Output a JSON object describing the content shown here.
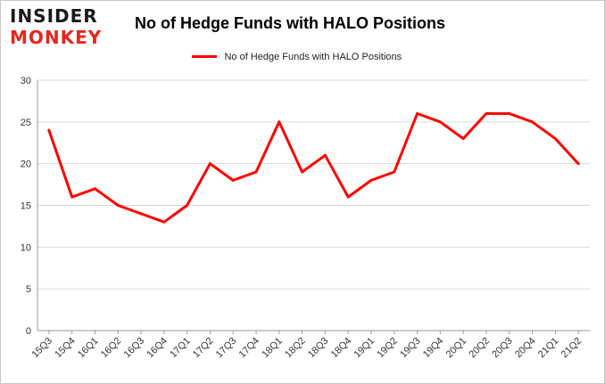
{
  "logo": {
    "line1": "INSIDER",
    "line2": "MONKEY"
  },
  "chart_data": {
    "type": "line",
    "title": "No of Hedge Funds with HALO Positions",
    "xlabel": "",
    "ylabel": "",
    "categories": [
      "15Q3",
      "15Q4",
      "16Q1",
      "16Q2",
      "16Q3",
      "16Q4",
      "17Q1",
      "17Q2",
      "17Q3",
      "17Q4",
      "18Q1",
      "18Q2",
      "18Q3",
      "18Q4",
      "19Q1",
      "19Q2",
      "19Q3",
      "19Q4",
      "20Q1",
      "20Q2",
      "20Q3",
      "20Q4",
      "21Q1",
      "21Q2"
    ],
    "series": [
      {
        "name": "No of Hedge Funds with HALO Positions",
        "color": "#ff0000",
        "values": [
          24,
          16,
          17,
          15,
          14,
          13,
          15,
          20,
          18,
          19,
          25,
          19,
          21,
          16,
          18,
          19,
          26,
          25,
          23,
          26,
          26,
          25,
          23,
          20
        ]
      }
    ],
    "ylim": [
      0,
      30
    ],
    "yticks": [
      0,
      5,
      10,
      15,
      20,
      25,
      30
    ],
    "grid": true,
    "legend_position": "top-center"
  }
}
